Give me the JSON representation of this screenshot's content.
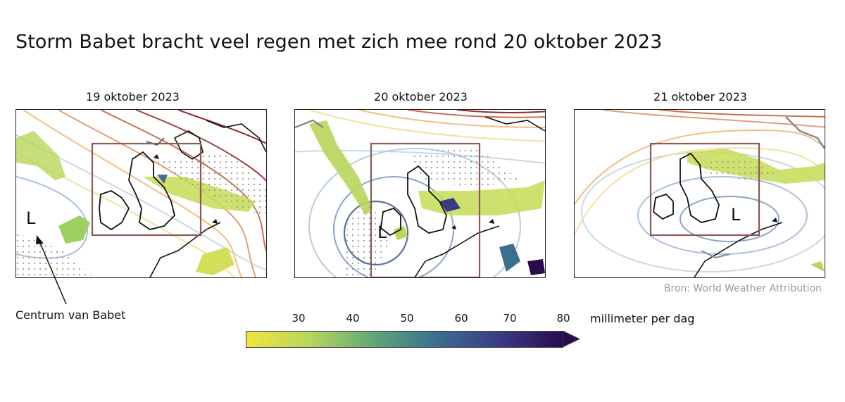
{
  "title": "Storm Babet bracht veel regen met zich mee rond 20 oktober 2023",
  "maps": [
    {
      "date": "19 oktober 2023",
      "low_label": "L"
    },
    {
      "date": "20 oktober 2023",
      "low_label": "L"
    },
    {
      "date": "21 oktober 2023",
      "low_label": "L"
    }
  ],
  "annotation": "Centrum van Babet",
  "source": "Bron: World Weather Attribution",
  "colorbar": {
    "ticks": [
      "30",
      "40",
      "50",
      "60",
      "70",
      "80"
    ],
    "unit": "millimeter per dag",
    "colors": [
      "#f0e442",
      "#b8d65a",
      "#5fa878",
      "#3c6e8f",
      "#3b3a85",
      "#2a0c4e"
    ]
  }
}
